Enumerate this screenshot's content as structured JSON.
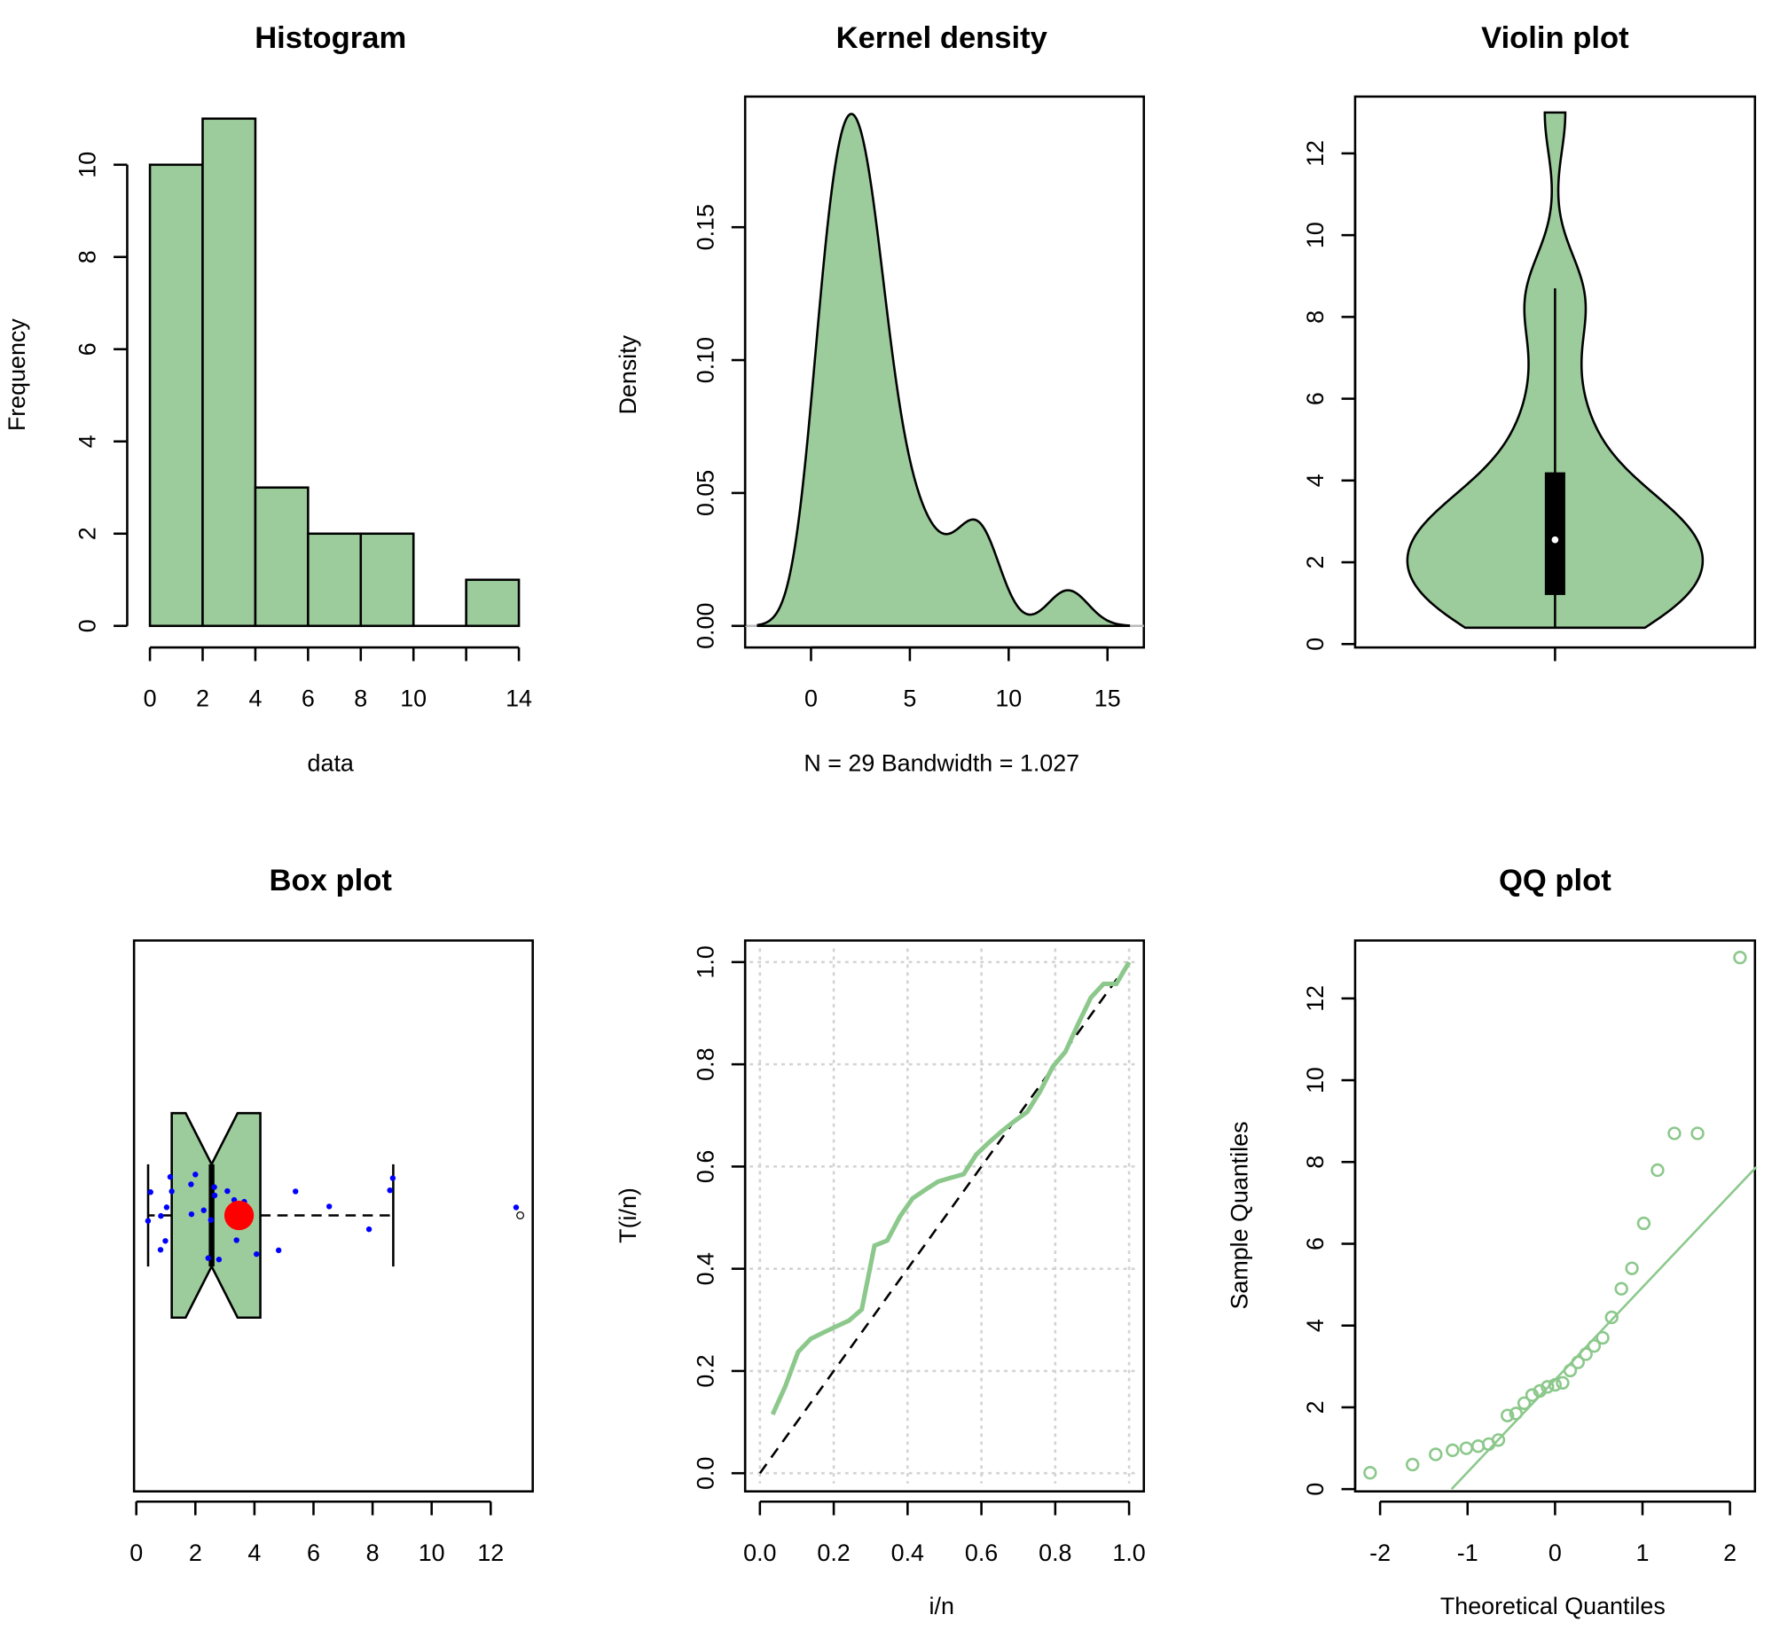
{
  "colors": {
    "fill": "#9ccc9c",
    "outline": "#000000",
    "line": "#8cc88c",
    "mean": "#ff0000",
    "points": "#0000ff",
    "grid": "#d3d3d3"
  },
  "sample": [
    0.4,
    0.6,
    0.85,
    0.95,
    1.0,
    1.05,
    1.1,
    1.2,
    1.8,
    1.85,
    2.1,
    2.3,
    2.4,
    2.5,
    2.55,
    2.6,
    2.9,
    3.1,
    3.3,
    3.5,
    3.7,
    4.2,
    4.9,
    5.4,
    6.5,
    7.8,
    8.7,
    8.7,
    13.0
  ],
  "chart_data": [
    {
      "id": "histogram",
      "type": "bar",
      "title": "Histogram",
      "xlabel": "data",
      "ylabel": "Frequency",
      "bins": [
        [
          0,
          2
        ],
        [
          2,
          4
        ],
        [
          4,
          6
        ],
        [
          6,
          8
        ],
        [
          8,
          10
        ],
        [
          10,
          12
        ],
        [
          12,
          14
        ]
      ],
      "values": [
        10,
        11,
        3,
        2,
        2,
        0,
        1
      ],
      "xticks": [
        "0",
        "2",
        "4",
        "6",
        "8",
        "10",
        "",
        "14"
      ],
      "xtick_values": [
        0,
        2,
        4,
        6,
        8,
        10,
        12,
        14
      ],
      "yticks": [
        "0",
        "2",
        "4",
        "6",
        "8",
        "10"
      ],
      "ylim": [
        0,
        11
      ]
    },
    {
      "id": "kernel-density",
      "type": "area",
      "title": "Kernel density",
      "xlabel": "N = 29   Bandwidth = 1.027",
      "ylabel": "Density",
      "bandwidth": 1.027,
      "n": 29,
      "xticks": [
        "0",
        "5",
        "10",
        "15"
      ],
      "yticks": [
        "0.00",
        "0.05",
        "0.10",
        "0.15"
      ],
      "xlim": [
        -3.4,
        16.8
      ],
      "ylim": [
        0,
        0.19
      ]
    },
    {
      "id": "violin",
      "type": "area",
      "title": "Violin plot",
      "yticks": [
        "0",
        "2",
        "4",
        "6",
        "8",
        "10",
        "12"
      ],
      "ylim": [
        0,
        13
      ],
      "median": 2.55,
      "q1": 1.2,
      "q3": 4.2,
      "whisker_low": 0.4,
      "whisker_high": 8.7
    },
    {
      "id": "box",
      "type": "box",
      "title": "Box plot",
      "xticks": [
        "0",
        "2",
        "4",
        "6",
        "8",
        "10",
        "12"
      ],
      "xlim": [
        0,
        13.5
      ],
      "median": 2.55,
      "q1": 1.2,
      "q3": 4.2,
      "whisker_low": 0.4,
      "whisker_high": 8.7,
      "outliers": [
        13.0
      ],
      "mean": 3.48
    },
    {
      "id": "ttt",
      "type": "line",
      "title": "",
      "xlabel": "i/n",
      "ylabel": "T(i/n)",
      "grid": true,
      "xticks": [
        "0.0",
        "0.2",
        "0.4",
        "0.6",
        "0.8",
        "1.0"
      ],
      "yticks": [
        "0.0",
        "0.2",
        "0.4",
        "0.6",
        "0.8",
        "1.0"
      ],
      "xlim": [
        0,
        1
      ],
      "ylim": [
        0,
        1
      ]
    },
    {
      "id": "qq",
      "type": "scatter",
      "title": "QQ plot",
      "xlabel": "Theoretical Quantiles",
      "ylabel": "Sample Quantiles",
      "xticks": [
        "-2",
        "-1",
        "0",
        "1",
        "2"
      ],
      "yticks": [
        "0",
        "2",
        "4",
        "6",
        "8",
        "10",
        "12"
      ],
      "xlim": [
        -2.3,
        2.3
      ],
      "ylim": [
        0,
        13
      ]
    }
  ]
}
